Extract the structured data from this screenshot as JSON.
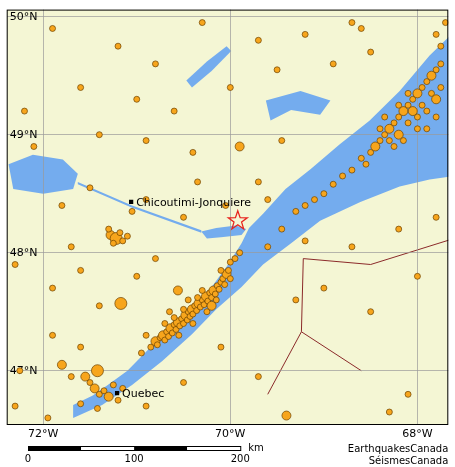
{
  "chart_data": {
    "type": "scatter",
    "xlim": [
      -72.39,
      -67.67
    ],
    "ylim": [
      46.54,
      50.06
    ],
    "xticks": [
      {
        "value": -72,
        "label": "72°W"
      },
      {
        "value": -70,
        "label": "70°W"
      },
      {
        "value": -68,
        "label": "68°W"
      }
    ],
    "yticks": [
      {
        "value": 47,
        "label": "47°N"
      },
      {
        "value": 48,
        "label": "48°N"
      },
      {
        "value": 49,
        "label": "49°N"
      },
      {
        "value": 50,
        "label": "50°N"
      }
    ],
    "grid": true,
    "color": "#f7a51c",
    "marker": "circle",
    "points": [
      [
        -70.85,
        47.2,
        1
      ],
      [
        -70.8,
        47.25,
        2
      ],
      [
        -70.78,
        47.22,
        1
      ],
      [
        -70.75,
        47.28,
        1
      ],
      [
        -70.72,
        47.3,
        2
      ],
      [
        -70.7,
        47.26,
        1
      ],
      [
        -70.68,
        47.33,
        1
      ],
      [
        -70.66,
        47.29,
        1
      ],
      [
        -70.64,
        47.36,
        2
      ],
      [
        -70.62,
        47.32,
        1
      ],
      [
        -70.6,
        47.39,
        1
      ],
      [
        -70.58,
        47.35,
        1
      ],
      [
        -70.56,
        47.41,
        2
      ],
      [
        -70.54,
        47.38,
        1
      ],
      [
        -70.52,
        47.44,
        1
      ],
      [
        -70.5,
        47.4,
        1
      ],
      [
        -70.48,
        47.47,
        2
      ],
      [
        -70.46,
        47.43,
        1
      ],
      [
        -70.45,
        47.5,
        1
      ],
      [
        -70.43,
        47.46,
        1
      ],
      [
        -70.41,
        47.52,
        2
      ],
      [
        -70.4,
        47.48,
        1
      ],
      [
        -70.38,
        47.55,
        1
      ],
      [
        -70.36,
        47.51,
        1
      ],
      [
        -70.34,
        47.57,
        2
      ],
      [
        -70.32,
        47.54,
        1
      ],
      [
        -70.3,
        47.6,
        1
      ],
      [
        -70.28,
        47.56,
        1
      ],
      [
        -70.26,
        47.63,
        2
      ],
      [
        -70.24,
        47.59,
        1
      ],
      [
        -70.22,
        47.66,
        1
      ],
      [
        -70.2,
        47.62,
        1
      ],
      [
        -70.18,
        47.68,
        2
      ],
      [
        -70.16,
        47.65,
        1
      ],
      [
        -70.14,
        47.72,
        1
      ],
      [
        -70.12,
        47.69,
        1
      ],
      [
        -70.1,
        47.75,
        1
      ],
      [
        -70.08,
        47.78,
        1
      ],
      [
        -70.06,
        47.73,
        1
      ],
      [
        -70.04,
        47.82,
        2
      ],
      [
        -70.02,
        47.85,
        1
      ],
      [
        -70.0,
        47.78,
        1
      ],
      [
        -70.7,
        47.4,
        1
      ],
      [
        -70.6,
        47.45,
        1
      ],
      [
        -70.55,
        47.3,
        1
      ],
      [
        -70.5,
        47.52,
        1
      ],
      [
        -70.4,
        47.4,
        1
      ],
      [
        -70.35,
        47.62,
        1
      ],
      [
        -70.25,
        47.5,
        1
      ],
      [
        -70.3,
        47.68,
        1
      ],
      [
        -70.2,
        47.55,
        2
      ],
      [
        -70.15,
        47.6,
        1
      ],
      [
        -70.9,
        47.3,
        1
      ],
      [
        -70.95,
        47.15,
        1
      ],
      [
        -70.65,
        47.5,
        1
      ],
      [
        -70.45,
        47.6,
        1
      ],
      [
        -70.1,
        47.85,
        1
      ],
      [
        -70.0,
        47.92,
        1
      ],
      [
        -69.95,
        47.95,
        1
      ],
      [
        -69.9,
        48.0,
        1
      ],
      [
        -71.17,
        47.57,
        3
      ],
      [
        -70.56,
        47.68,
        2
      ],
      [
        -71.45,
        46.85,
        2
      ],
      [
        -71.4,
        46.8,
        1
      ],
      [
        -71.35,
        46.83,
        1
      ],
      [
        -71.3,
        46.78,
        2
      ],
      [
        -71.25,
        46.88,
        1
      ],
      [
        -71.2,
        46.75,
        1
      ],
      [
        -71.5,
        46.9,
        1
      ],
      [
        -71.55,
        46.95,
        2
      ],
      [
        -71.6,
        46.72,
        1
      ],
      [
        -71.42,
        46.68,
        1
      ],
      [
        -71.15,
        46.85,
        1
      ],
      [
        -71.7,
        46.95,
        1
      ],
      [
        -71.42,
        47.0,
        3
      ],
      [
        -71.8,
        47.05,
        2
      ],
      [
        -71.28,
        48.15,
        2
      ],
      [
        -71.22,
        48.12,
        3
      ],
      [
        -71.18,
        48.17,
        1
      ],
      [
        -71.15,
        48.1,
        1
      ],
      [
        -71.25,
        48.08,
        1
      ],
      [
        -71.1,
        48.14,
        1
      ],
      [
        -71.3,
        48.2,
        1
      ],
      [
        -68.5,
        48.85,
        1
      ],
      [
        -68.45,
        48.9,
        2
      ],
      [
        -68.4,
        48.95,
        1
      ],
      [
        -68.35,
        49.0,
        1
      ],
      [
        -68.3,
        49.05,
        2
      ],
      [
        -68.25,
        49.1,
        1
      ],
      [
        -68.2,
        49.15,
        1
      ],
      [
        -68.15,
        49.2,
        2
      ],
      [
        -68.1,
        49.25,
        1
      ],
      [
        -68.05,
        49.3,
        1
      ],
      [
        -68.0,
        49.35,
        2
      ],
      [
        -67.95,
        49.4,
        1
      ],
      [
        -67.9,
        49.45,
        1
      ],
      [
        -67.85,
        49.5,
        2
      ],
      [
        -67.8,
        49.55,
        1
      ],
      [
        -67.75,
        49.6,
        1
      ],
      [
        -68.4,
        49.05,
        1
      ],
      [
        -68.3,
        48.95,
        1
      ],
      [
        -68.2,
        49.0,
        2
      ],
      [
        -68.1,
        49.1,
        1
      ],
      [
        -68.0,
        49.15,
        1
      ],
      [
        -67.9,
        49.2,
        1
      ],
      [
        -67.8,
        49.3,
        2
      ],
      [
        -68.2,
        49.25,
        1
      ],
      [
        -68.1,
        49.35,
        1
      ],
      [
        -68.0,
        49.05,
        1
      ],
      [
        -67.9,
        49.05,
        1
      ],
      [
        -67.8,
        49.15,
        1
      ],
      [
        -67.75,
        49.4,
        1
      ],
      [
        -68.35,
        49.15,
        1
      ],
      [
        -68.25,
        48.9,
        1
      ],
      [
        -68.15,
        48.95,
        1
      ],
      [
        -68.05,
        49.2,
        2
      ],
      [
        -67.95,
        49.25,
        1
      ],
      [
        -67.85,
        49.35,
        1
      ],
      [
        -68.6,
        48.8,
        1
      ],
      [
        -68.55,
        48.75,
        1
      ],
      [
        -68.7,
        48.7,
        1
      ],
      [
        -68.8,
        48.65,
        1
      ],
      [
        -68.9,
        48.58,
        1
      ],
      [
        -69.0,
        48.5,
        1
      ],
      [
        -69.1,
        48.45,
        1
      ],
      [
        -69.2,
        48.4,
        1
      ],
      [
        -69.3,
        48.35,
        1
      ],
      [
        -67.75,
        49.75,
        1
      ],
      [
        -67.8,
        49.85,
        1
      ],
      [
        -67.7,
        49.95,
        1
      ],
      [
        -68.5,
        49.7,
        1
      ],
      [
        -68.6,
        49.9,
        1
      ],
      [
        -71.9,
        49.9,
        1
      ],
      [
        -71.2,
        49.75,
        1
      ],
      [
        -70.8,
        49.6,
        1
      ],
      [
        -70.3,
        49.95,
        1
      ],
      [
        -69.7,
        49.8,
        1
      ],
      [
        -69.2,
        49.85,
        1
      ],
      [
        -68.7,
        49.95,
        1
      ],
      [
        -71.6,
        49.4,
        1
      ],
      [
        -71.0,
        49.3,
        1
      ],
      [
        -70.6,
        49.2,
        1
      ],
      [
        -70.0,
        49.4,
        1
      ],
      [
        -69.5,
        49.55,
        1
      ],
      [
        -68.9,
        49.6,
        1
      ],
      [
        -71.4,
        49.0,
        1
      ],
      [
        -70.9,
        48.95,
        1
      ],
      [
        -70.4,
        48.85,
        1
      ],
      [
        -69.9,
        48.9,
        2
      ],
      [
        -69.45,
        48.95,
        1
      ],
      [
        -72.2,
        49.2,
        1
      ],
      [
        -72.1,
        48.9,
        1
      ],
      [
        -71.8,
        48.4,
        1
      ],
      [
        -71.5,
        48.55,
        1
      ],
      [
        -70.9,
        48.45,
        1
      ],
      [
        -70.5,
        48.3,
        1
      ],
      [
        -70.35,
        48.6,
        1
      ],
      [
        -69.7,
        48.6,
        1
      ],
      [
        -69.6,
        48.45,
        1
      ],
      [
        -72.3,
        47.9,
        1
      ],
      [
        -71.9,
        47.7,
        1
      ],
      [
        -71.6,
        47.85,
        1
      ],
      [
        -71.4,
        47.55,
        1
      ],
      [
        -71.0,
        47.8,
        1
      ],
      [
        -70.8,
        47.95,
        1
      ],
      [
        -71.9,
        47.3,
        1
      ],
      [
        -71.6,
        47.2,
        1
      ],
      [
        -72.25,
        47.0,
        1
      ],
      [
        -72.3,
        46.7,
        1
      ],
      [
        -71.95,
        46.6,
        1
      ],
      [
        -70.9,
        46.7,
        1
      ],
      [
        -70.5,
        46.9,
        1
      ],
      [
        -70.1,
        47.2,
        1
      ],
      [
        -69.7,
        46.95,
        1
      ],
      [
        -69.4,
        46.62,
        2
      ],
      [
        -68.3,
        46.65,
        1
      ],
      [
        -68.1,
        46.8,
        1
      ],
      [
        -68.5,
        47.5,
        1
      ],
      [
        -68.0,
        47.8,
        1
      ],
      [
        -69.0,
        47.7,
        1
      ],
      [
        -69.3,
        47.6,
        1
      ],
      [
        -68.7,
        48.05,
        1
      ],
      [
        -68.2,
        48.2,
        1
      ],
      [
        -67.8,
        48.3,
        1
      ],
      [
        -69.6,
        48.05,
        1
      ],
      [
        -69.45,
        48.2,
        1
      ],
      [
        -69.2,
        48.1,
        1
      ],
      [
        -71.05,
        48.35,
        1
      ],
      [
        -71.7,
        48.05,
        1
      ],
      [
        -70.05,
        48.4,
        1
      ]
    ],
    "star": {
      "x": -69.92,
      "y": 48.27,
      "color": "#e8231c"
    },
    "places": [
      {
        "label": "Chicoutimi-Jonquiere",
        "x": -71.06,
        "y": 48.43
      },
      {
        "label": "Quebec",
        "x": -71.21,
        "y": 46.81
      }
    ],
    "water": [
      [
        [
          -67.61,
          49.87
        ],
        [
          -67.87,
          49.67
        ],
        [
          -68.19,
          49.37
        ],
        [
          -68.51,
          49.12
        ],
        [
          -68.83,
          48.92
        ],
        [
          -69.14,
          48.71
        ],
        [
          -69.41,
          48.54
        ],
        [
          -69.65,
          48.33
        ],
        [
          -69.8,
          48.21
        ],
        [
          -69.88,
          48.08
        ],
        [
          -70.04,
          47.88
        ],
        [
          -70.2,
          47.71
        ],
        [
          -70.52,
          47.46
        ],
        [
          -70.84,
          47.21
        ],
        [
          -71.1,
          47.0
        ],
        [
          -71.31,
          46.88
        ],
        [
          -71.47,
          46.79
        ],
        [
          -71.68,
          46.71
        ],
        [
          -71.68,
          46.6
        ],
        [
          -71.37,
          46.71
        ],
        [
          -71.05,
          46.88
        ],
        [
          -70.73,
          47.08
        ],
        [
          -70.41,
          47.31
        ],
        [
          -70.15,
          47.52
        ],
        [
          -69.88,
          47.71
        ],
        [
          -69.65,
          47.9
        ],
        [
          -69.35,
          48.08
        ],
        [
          -69.04,
          48.27
        ],
        [
          -68.61,
          48.43
        ],
        [
          -68.19,
          48.56
        ],
        [
          -67.87,
          48.62
        ],
        [
          -67.61,
          48.65
        ]
      ],
      [
        [
          -70.31,
          48.18
        ],
        [
          -70.15,
          48.21
        ],
        [
          -69.94,
          48.23
        ],
        [
          -69.83,
          48.2
        ],
        [
          -69.88,
          48.15
        ],
        [
          -70.1,
          48.13
        ],
        [
          -70.25,
          48.12
        ]
      ],
      [
        [
          -71.63,
          48.6
        ],
        [
          -71.05,
          48.4
        ],
        [
          -70.31,
          48.19
        ],
        [
          -70.31,
          48.17
        ],
        [
          -71.05,
          48.38
        ],
        [
          -71.63,
          48.58
        ]
      ],
      [
        [
          -72.37,
          48.75
        ],
        [
          -72.11,
          48.83
        ],
        [
          -71.79,
          48.79
        ],
        [
          -71.63,
          48.67
        ],
        [
          -71.68,
          48.54
        ],
        [
          -72.0,
          48.5
        ],
        [
          -72.32,
          48.54
        ]
      ],
      [
        [
          -70.47,
          49.46
        ],
        [
          -70.25,
          49.62
        ],
        [
          -70.04,
          49.75
        ],
        [
          -69.99,
          49.71
        ],
        [
          -70.2,
          49.54
        ],
        [
          -70.41,
          49.4
        ]
      ],
      [
        [
          -69.62,
          49.29
        ],
        [
          -69.25,
          49.37
        ],
        [
          -68.93,
          49.29
        ],
        [
          -69.04,
          49.17
        ],
        [
          -69.35,
          49.21
        ],
        [
          -69.57,
          49.12
        ]
      ]
    ],
    "borders": [
      [
        [
          -69.22,
          47.95
        ],
        [
          -68.5,
          47.9
        ],
        [
          -67.61,
          48.12
        ]
      ],
      [
        [
          -69.22,
          47.95
        ],
        [
          -69.24,
          47.33
        ],
        [
          -68.6,
          47.0
        ]
      ],
      [
        [
          -69.24,
          47.33
        ],
        [
          -69.6,
          46.8
        ]
      ]
    ],
    "scale_bar": {
      "ticks": [
        0,
        100,
        200
      ],
      "unit": "km"
    },
    "credits": [
      "EarthquakesCanada",
      "SéismesCanada"
    ]
  }
}
